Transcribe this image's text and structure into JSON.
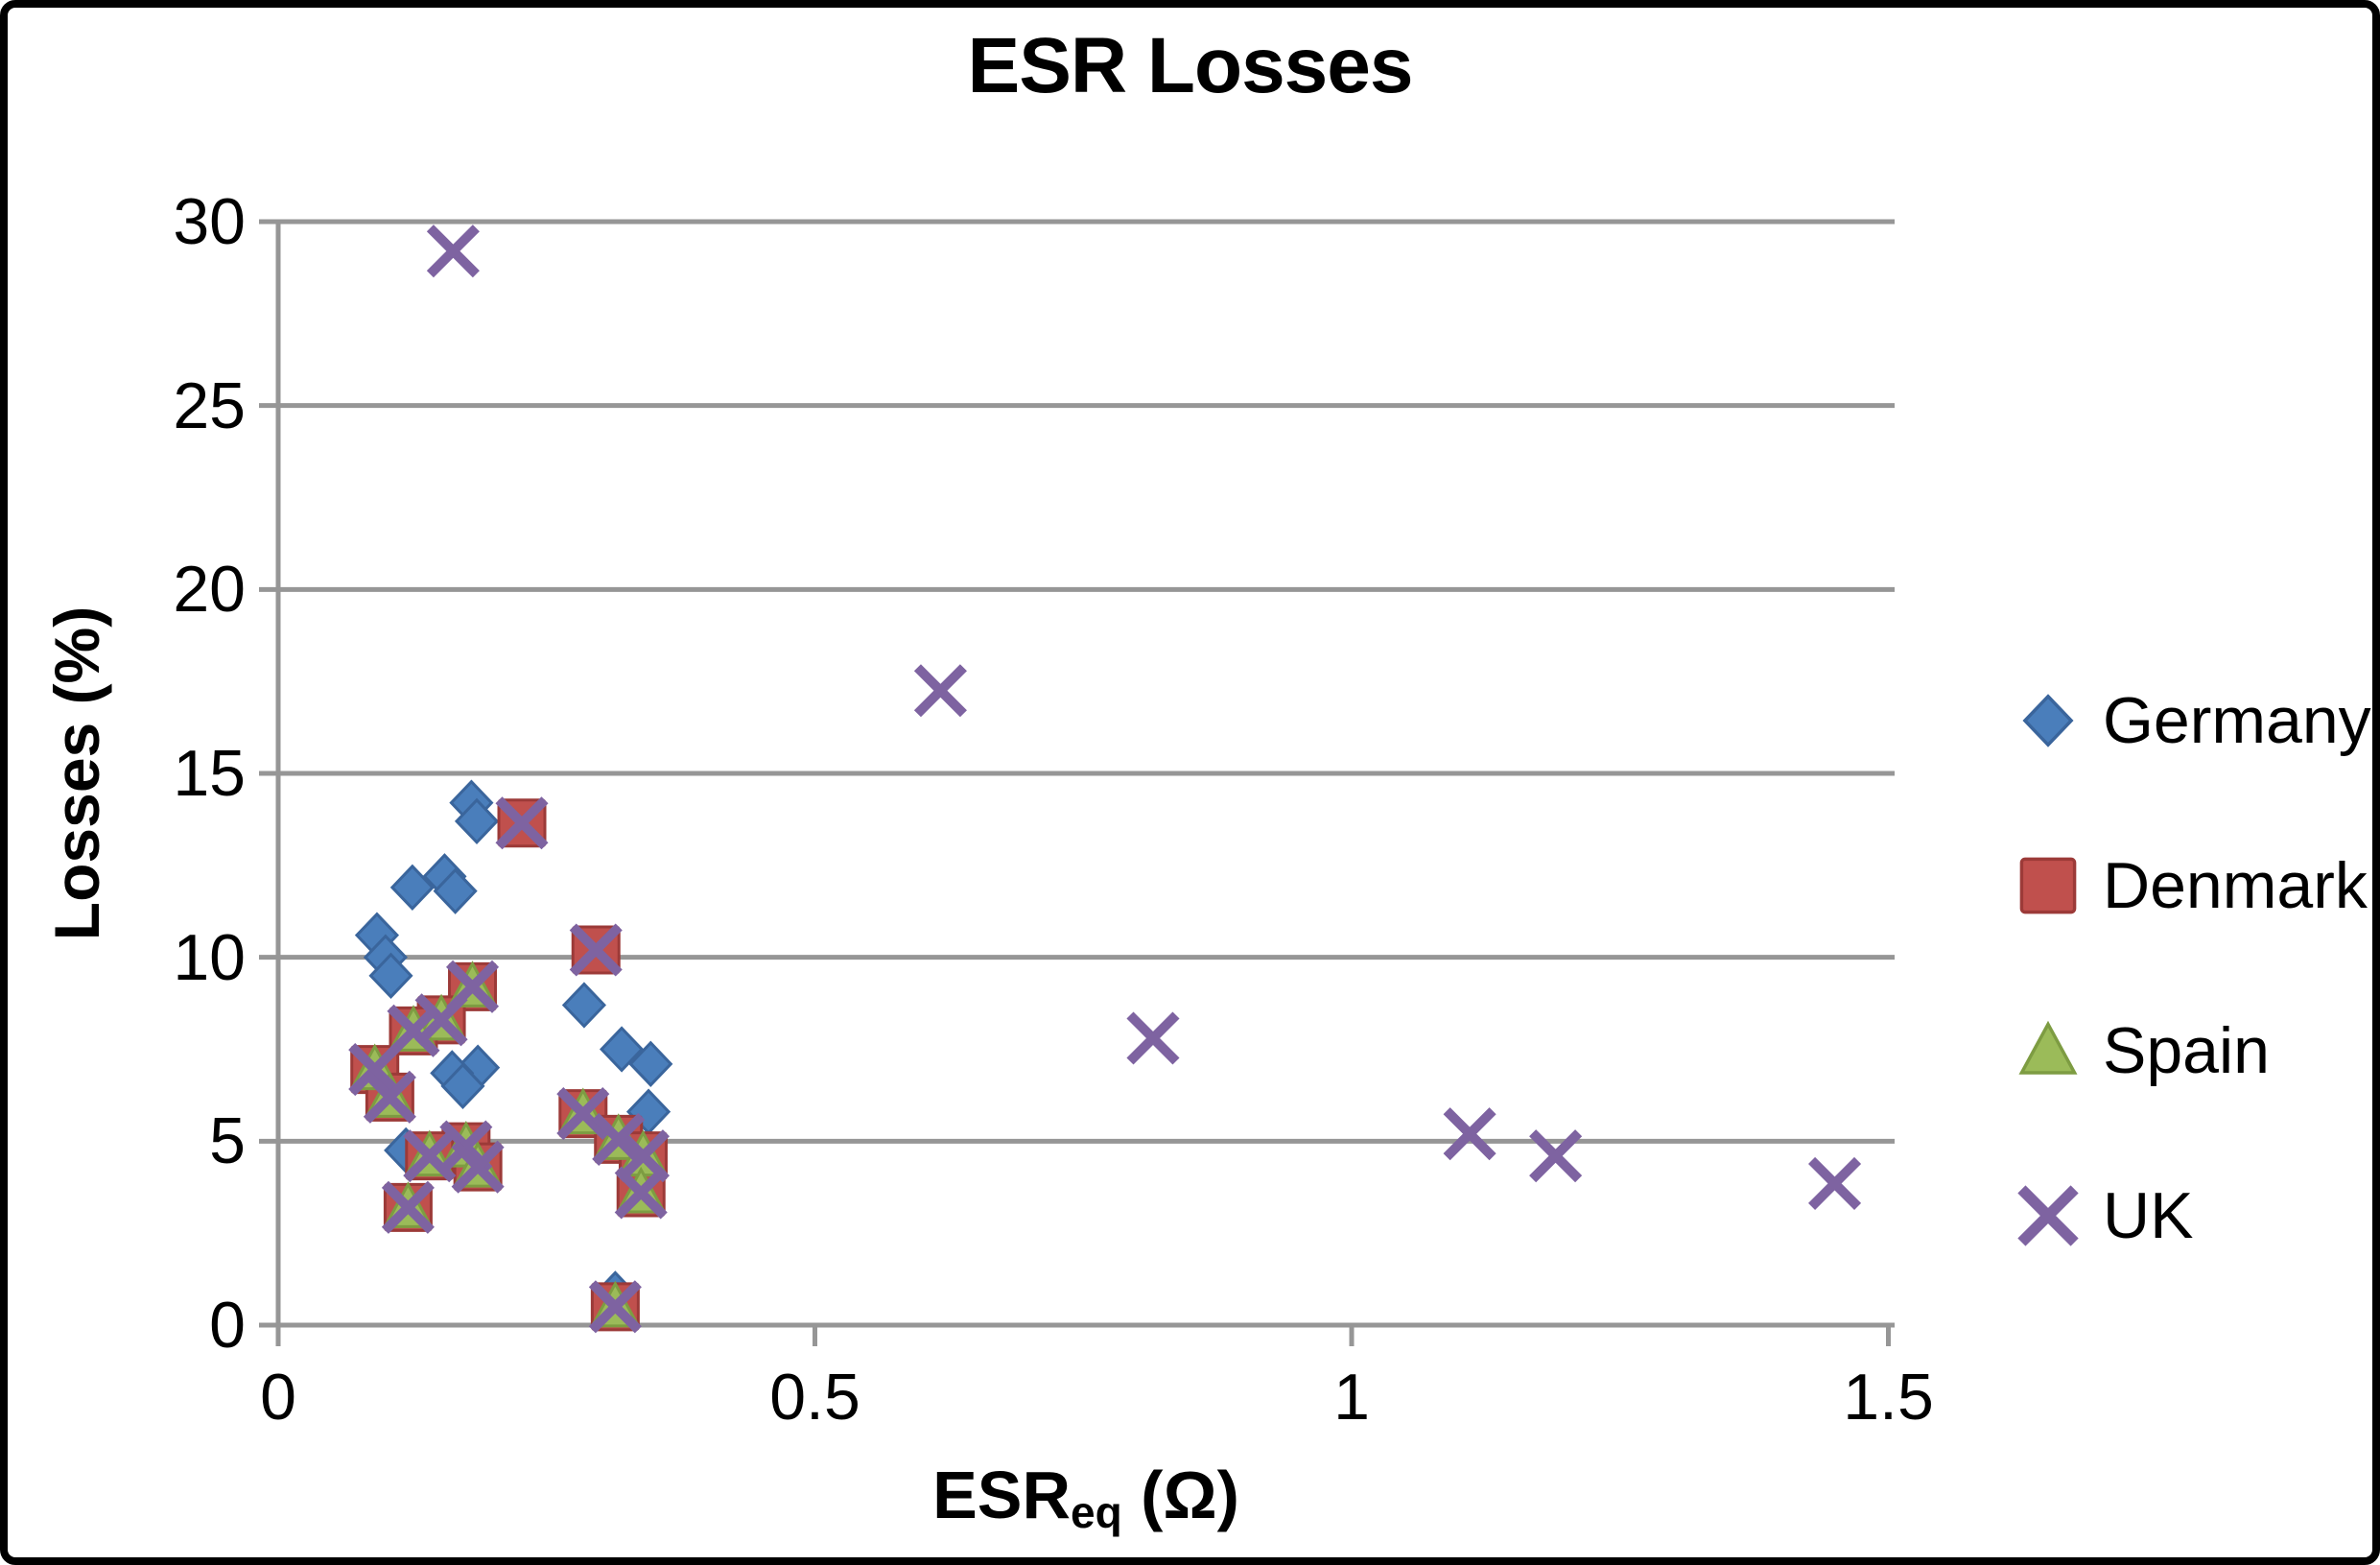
{
  "title": "ESR Losses",
  "y_axis": {
    "label": "Losses (%)"
  },
  "x_axis": {
    "label_main": "ESR",
    "label_sub": "eq",
    "label_unit": " (Ω)"
  },
  "colors": {
    "germany": "#4a7ebb",
    "germany_edge": "#3a659c",
    "denmark": "#c0504d",
    "denmark_edge": "#9c3a38",
    "spain": "#9bbb59",
    "spain_edge": "#7d9c42",
    "uk": "#7e63a1",
    "grid": "#969696",
    "text": "#000000"
  },
  "chart_data": {
    "type": "scatter",
    "title": "ESR Losses",
    "xlabel": "ESReq (Ω)",
    "ylabel": "Losses (%)",
    "xlim": [
      0,
      1.5
    ],
    "ylim": [
      0,
      30
    ],
    "grid": "horizontal",
    "legend_position": "right",
    "x_ticks": [
      {
        "v": 0,
        "t": "0"
      },
      {
        "v": 0.5,
        "t": "0.5"
      },
      {
        "v": 1,
        "t": "1"
      },
      {
        "v": 1.5,
        "t": "1.5"
      }
    ],
    "y_ticks": [
      {
        "v": 0,
        "t": "0"
      },
      {
        "v": 5,
        "t": "5"
      },
      {
        "v": 10,
        "t": "10"
      },
      {
        "v": 15,
        "t": "15"
      },
      {
        "v": 20,
        "t": "20"
      },
      {
        "v": 25,
        "t": "25"
      },
      {
        "v": 30,
        "t": "30"
      }
    ],
    "series": [
      {
        "name": "Germany",
        "marker": "diamond",
        "color": "#4a7ebb",
        "edge": "#3a659c",
        "points": [
          [
            0.18,
            14.2
          ],
          [
            0.185,
            13.7
          ],
          [
            0.155,
            12.2
          ],
          [
            0.125,
            11.9
          ],
          [
            0.165,
            11.8
          ],
          [
            0.092,
            10.6
          ],
          [
            0.1,
            10.0
          ],
          [
            0.105,
            9.5
          ],
          [
            0.285,
            8.7
          ],
          [
            0.32,
            7.5
          ],
          [
            0.347,
            7.1
          ],
          [
            0.186,
            7.0
          ],
          [
            0.162,
            6.85
          ],
          [
            0.172,
            6.5
          ],
          [
            0.345,
            5.8
          ],
          [
            0.119,
            4.75
          ],
          [
            0.314,
            0.85
          ]
        ]
      },
      {
        "name": "Denmark",
        "marker": "square",
        "color": "#c0504d",
        "edge": "#9c3a38",
        "points": [
          [
            0.227,
            13.65
          ],
          [
            0.296,
            10.2
          ],
          [
            0.181,
            9.2
          ],
          [
            0.152,
            8.3
          ],
          [
            0.126,
            8.0
          ],
          [
            0.09,
            6.95
          ],
          [
            0.104,
            6.2
          ],
          [
            0.284,
            5.75
          ],
          [
            0.317,
            5.05
          ],
          [
            0.175,
            4.85
          ],
          [
            0.141,
            4.6
          ],
          [
            0.34,
            4.6
          ],
          [
            0.186,
            4.3
          ],
          [
            0.338,
            3.6
          ],
          [
            0.121,
            3.2
          ],
          [
            0.314,
            0.5
          ]
        ]
      },
      {
        "name": "Spain",
        "marker": "triangle",
        "color": "#9bbb59",
        "edge": "#7d9c42",
        "points": [
          [
            0.181,
            9.2
          ],
          [
            0.152,
            8.3
          ],
          [
            0.126,
            8.0
          ],
          [
            0.09,
            6.95
          ],
          [
            0.104,
            6.2
          ],
          [
            0.284,
            5.75
          ],
          [
            0.317,
            5.05
          ],
          [
            0.175,
            4.85
          ],
          [
            0.141,
            4.6
          ],
          [
            0.34,
            4.6
          ],
          [
            0.186,
            4.3
          ],
          [
            0.338,
            3.6
          ],
          [
            0.121,
            3.2
          ],
          [
            0.314,
            0.5
          ]
        ]
      },
      {
        "name": "UK",
        "marker": "x",
        "color": "#7e63a1",
        "edge": "#7e63a1",
        "points": [
          [
            0.163,
            29.2
          ],
          [
            0.617,
            17.25
          ],
          [
            0.815,
            7.8
          ],
          [
            1.11,
            5.2
          ],
          [
            1.19,
            4.6
          ],
          [
            1.45,
            3.85
          ],
          [
            0.227,
            13.65
          ],
          [
            0.296,
            10.2
          ],
          [
            0.181,
            9.2
          ],
          [
            0.152,
            8.3
          ],
          [
            0.126,
            8.0
          ],
          [
            0.09,
            6.95
          ],
          [
            0.104,
            6.2
          ],
          [
            0.284,
            5.75
          ],
          [
            0.317,
            5.05
          ],
          [
            0.175,
            4.85
          ],
          [
            0.141,
            4.6
          ],
          [
            0.34,
            4.6
          ],
          [
            0.186,
            4.3
          ],
          [
            0.338,
            3.6
          ],
          [
            0.121,
            3.2
          ],
          [
            0.314,
            0.5
          ]
        ]
      }
    ]
  }
}
